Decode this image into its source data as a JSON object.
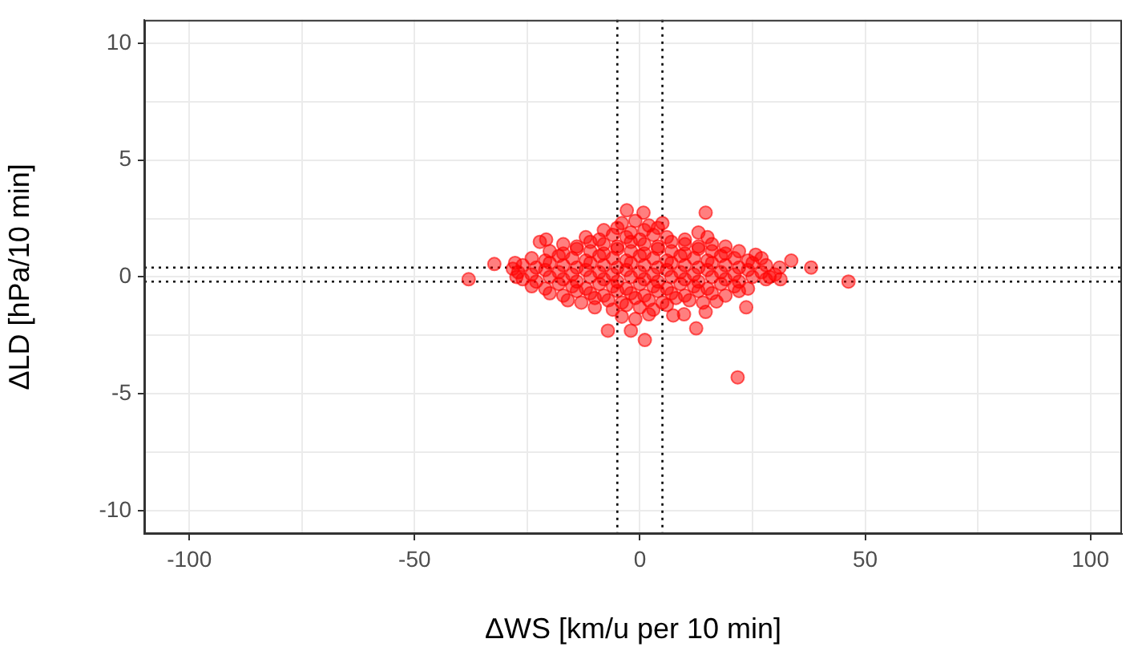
{
  "chart_data": {
    "type": "scatter",
    "xlabel": "ΔWS [km/u per 10 min]",
    "ylabel": "ΔLD [hPa/10 min]",
    "xlim": [
      -110,
      107
    ],
    "ylim": [
      -11,
      11
    ],
    "xticks": [
      -100,
      {
        "value": -75,
        "label": null
      },
      -50,
      {
        "value": -25,
        "label": null
      },
      0,
      {
        "value": 25,
        "label": null
      },
      50,
      {
        "value": 75,
        "label": null
      },
      100
    ],
    "yticks": [
      -10,
      {
        "value": -7.5,
        "label": null
      },
      -5,
      {
        "value": -2.5,
        "label": null
      },
      0,
      {
        "value": 2.5,
        "label": null
      },
      5,
      {
        "value": 7.5,
        "label": null
      },
      10
    ],
    "grid": true,
    "marker": "circle",
    "ref_lines": [
      {
        "axis": "x",
        "value": -5,
        "line_style": "dotted",
        "color": "#000000"
      },
      {
        "axis": "x",
        "value": 5,
        "line_style": "dotted",
        "color": "#000000"
      },
      {
        "axis": "y",
        "value": 0.4,
        "line_style": "dotted",
        "color": "#000000"
      },
      {
        "axis": "y",
        "value": -0.2,
        "line_style": "dotted",
        "color": "#000000"
      }
    ],
    "series": [
      {
        "color": "#ff0000",
        "x": [
          -38,
          -32.3,
          46.3,
          38,
          33.6,
          21.7,
          14.6,
          1.1,
          -2,
          -7.1,
          12.5,
          23.6,
          -2.9,
          0.8,
          -20.8,
          -22.2,
          7.4,
          9.8,
          14.6,
          17,
          25.7,
          28.8,
          31.2,
          -28.2,
          -27.7,
          -27.4,
          -4,
          -1,
          2,
          5,
          -8,
          -5,
          -2,
          1,
          4,
          13,
          -12,
          -9,
          -6,
          -3,
          0,
          3,
          6,
          10,
          15,
          -17,
          -14,
          -11,
          -8,
          -5,
          -2,
          1,
          4,
          7,
          10,
          13,
          16,
          19,
          -20,
          -17,
          -14,
          -11,
          -8,
          -5,
          -2,
          1,
          4,
          7,
          10,
          13,
          16,
          19,
          22,
          -24,
          -21,
          -18,
          -15,
          -12,
          -9,
          -6,
          -3,
          0,
          3,
          6,
          9,
          12,
          15,
          18,
          21,
          24,
          27,
          -26,
          -23,
          -20,
          -17,
          -14,
          -11,
          -8,
          -5,
          -2,
          1,
          4,
          7,
          10,
          13,
          16,
          19,
          22,
          25,
          28,
          31,
          -27,
          -24,
          -21,
          -18,
          -15,
          -12,
          -9,
          -6,
          -3,
          0,
          3,
          6,
          9,
          12,
          15,
          18,
          21,
          24,
          27,
          30,
          -26,
          -23,
          -20,
          -17,
          -14,
          -11,
          -8,
          -5,
          -2,
          1,
          4,
          7,
          10,
          13,
          16,
          19,
          22,
          25,
          28,
          -24,
          -21,
          -18,
          -15,
          -12,
          -9,
          -6,
          -3,
          0,
          3,
          6,
          9,
          12,
          15,
          18,
          21,
          24,
          -20,
          -17,
          -14,
          -11,
          -8,
          -5,
          -2,
          1,
          4,
          7,
          10,
          13,
          16,
          19,
          22,
          -16,
          -13,
          -10,
          -7,
          -4,
          -1,
          2,
          5,
          8,
          11,
          14,
          -10,
          -6,
          -3,
          0,
          3,
          6,
          -4,
          -1,
          2
        ],
        "values": [
          -0.1,
          0.55,
          -0.2,
          0.4,
          0.7,
          -4.3,
          2.75,
          -2.7,
          -2.3,
          -2.3,
          -2.2,
          -1.3,
          2.85,
          2.75,
          1.6,
          1.5,
          -1.65,
          -1.6,
          -1.5,
          -1.05,
          0.95,
          0,
          -0.1,
          0.35,
          0.6,
          0,
          2.3,
          2.4,
          2.2,
          2.3,
          2.0,
          2.1,
          1.9,
          2.0,
          2.1,
          1.9,
          1.7,
          1.6,
          1.8,
          1.7,
          1.6,
          1.8,
          1.7,
          1.6,
          1.7,
          1.4,
          1.3,
          1.5,
          1.4,
          1.3,
          1.5,
          1.4,
          1.3,
          1.5,
          1.4,
          1.3,
          1.4,
          1.3,
          1.1,
          1.0,
          1.2,
          1.1,
          1.0,
          1.2,
          1.1,
          1.0,
          1.2,
          1.1,
          1.0,
          1.2,
          1.1,
          1.0,
          1.1,
          0.8,
          0.7,
          0.9,
          0.8,
          0.7,
          0.9,
          0.8,
          0.7,
          0.9,
          0.8,
          0.7,
          0.9,
          0.8,
          0.7,
          0.9,
          0.8,
          0.7,
          0.8,
          0.5,
          0.4,
          0.6,
          0.5,
          0.4,
          0.6,
          0.5,
          0.4,
          0.6,
          0.5,
          0.4,
          0.6,
          0.5,
          0.4,
          0.6,
          0.5,
          0.4,
          0.6,
          0.5,
          0.4,
          0.2,
          0.1,
          0.3,
          0.2,
          0.1,
          0.3,
          0.2,
          0.1,
          0.3,
          0.2,
          0.1,
          0.3,
          0.2,
          0.1,
          0.3,
          0.2,
          0.1,
          0.3,
          0.2,
          0.1,
          -0.1,
          -0.2,
          0,
          -0.1,
          -0.2,
          0,
          -0.1,
          -0.2,
          0,
          -0.1,
          -0.2,
          0,
          -0.1,
          -0.2,
          0,
          -0.1,
          -0.2,
          0,
          -0.1,
          -0.4,
          -0.5,
          -0.3,
          -0.4,
          -0.5,
          -0.3,
          -0.4,
          -0.5,
          -0.3,
          -0.4,
          -0.5,
          -0.3,
          -0.4,
          -0.5,
          -0.3,
          -0.4,
          -0.5,
          -0.7,
          -0.8,
          -0.6,
          -0.7,
          -0.8,
          -0.6,
          -0.7,
          -0.8,
          -0.6,
          -0.7,
          -0.8,
          -0.6,
          -0.7,
          -0.8,
          -0.6,
          -1.0,
          -1.1,
          -0.9,
          -1.0,
          -1.1,
          -0.9,
          -1.0,
          -1.1,
          -0.9,
          -1.0,
          -1.1,
          -1.3,
          -1.4,
          -1.2,
          -1.3,
          -1.4,
          -1.2,
          -1.7,
          -1.8,
          -1.6
        ]
      }
    ]
  }
}
